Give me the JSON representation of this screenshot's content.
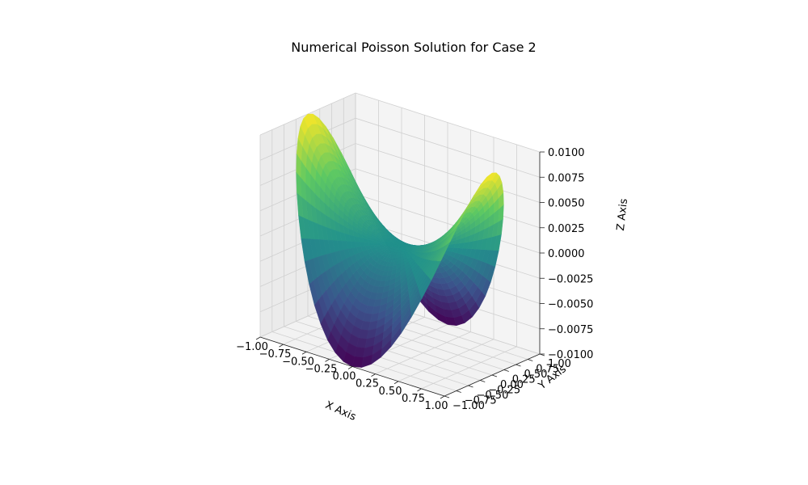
{
  "chart_data": {
    "type": "surface3d",
    "title": "Numerical Poisson Solution for Case 2",
    "xlabel": "X Axis",
    "ylabel": "Y Axis",
    "zlabel": "Z Axis",
    "xlim": [
      -1.0,
      1.0
    ],
    "ylim": [
      -1.0,
      1.0
    ],
    "zlim": [
      -0.01,
      0.01
    ],
    "x_ticks": [
      "−1.00",
      "−0.75",
      "−0.50",
      "−0.25",
      "0.00",
      "0.25",
      "0.50",
      "0.75",
      "1.00"
    ],
    "y_ticks": [
      "−1.00",
      "−0.75",
      "−0.50",
      "−0.25",
      "0.00",
      "0.25",
      "0.50",
      "0.75",
      "1.00"
    ],
    "z_ticks": [
      "−0.0100",
      "−0.0075",
      "−0.0050",
      "−0.0025",
      "0.0000",
      "0.0025",
      "0.0050",
      "0.0075",
      "0.0100"
    ],
    "domain": "unit disk",
    "surface": "z ≈ 0.01·r²·cos(2θ) over the unit disk (approximate)",
    "colormap": "viridis",
    "grid": true,
    "colormap_stops": [
      "#440154",
      "#3b528b",
      "#21918c",
      "#5ec962",
      "#fde725"
    ]
  }
}
